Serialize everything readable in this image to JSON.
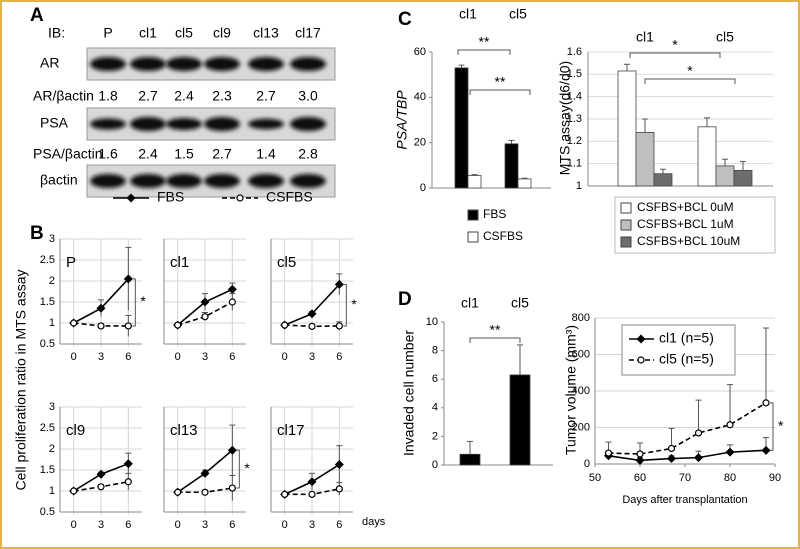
{
  "panel_labels": [
    "A",
    "B",
    "C",
    "D"
  ],
  "blot": {
    "ib_label": "IB:",
    "lanes": [
      "P",
      "cl1",
      "cl5",
      "cl9",
      "cl13",
      "cl17"
    ],
    "rows": [
      {
        "label": "AR"
      },
      {
        "label": "AR/βactin",
        "cells": [
          "1.8",
          "2.7",
          "2.4",
          "2.3",
          "2.7",
          "3.0"
        ]
      },
      {
        "label": "PSA"
      },
      {
        "label": "PSA/βactin",
        "cells": [
          "1.6",
          "2.4",
          "1.5",
          "2.7",
          "1.4",
          "2.8"
        ]
      },
      {
        "label": "βactin"
      }
    ]
  },
  "chart_data": [
    {
      "type": "line",
      "title": "P",
      "ylabel": "Cell proliferation ratio in MTS assay",
      "x": [
        0,
        3,
        6
      ],
      "xlim": [
        -1.5,
        7.5
      ],
      "xticks": [
        0,
        3,
        6
      ],
      "ylim": [
        0.5,
        3
      ],
      "yticks": [
        0.5,
        1,
        1.5,
        2,
        2.5,
        3
      ],
      "grid": true,
      "ytick_labels": true,
      "annotations": [
        "*"
      ],
      "series": [
        {
          "name": "FBS",
          "color": "#000000",
          "marker": "diamond",
          "dashed": false,
          "values": [
            1,
            1.35,
            2.05
          ],
          "errors": [
            0,
            0.2,
            0.75
          ]
        },
        {
          "name": "CSFBS",
          "color": "#000000",
          "marker": "open-circle",
          "dashed": true,
          "values": [
            1,
            0.93,
            0.93
          ],
          "errors": [
            0,
            0.05,
            0.25
          ]
        }
      ]
    },
    {
      "type": "line",
      "title": "cl1",
      "x": [
        0,
        3,
        6
      ],
      "xlim": [
        -1.5,
        7.5
      ],
      "xticks": [
        0,
        3,
        6
      ],
      "ylim": [
        0.5,
        3
      ],
      "yticks": [
        0.5,
        1,
        1.5,
        2,
        2.5,
        3
      ],
      "grid": true,
      "ytick_labels": false,
      "series": [
        {
          "color": "#000000",
          "marker": "diamond",
          "dashed": false,
          "values": [
            0.95,
            1.5,
            1.8
          ],
          "errors": [
            0,
            0.2,
            0.15
          ]
        },
        {
          "color": "#000000",
          "marker": "open-circle",
          "dashed": true,
          "values": [
            0.95,
            1.15,
            1.5
          ],
          "errors": [
            0,
            0.1,
            0.2
          ]
        }
      ]
    },
    {
      "type": "line",
      "title": "cl5",
      "x": [
        0,
        3,
        6
      ],
      "xlim": [
        -1.5,
        7.5
      ],
      "xticks": [
        0,
        3,
        6
      ],
      "ylim": [
        0.5,
        3
      ],
      "yticks": [
        0.5,
        1,
        1.5,
        2,
        2.5,
        3
      ],
      "grid": true,
      "ytick_labels": false,
      "annotations": [
        "*"
      ],
      "series": [
        {
          "color": "#000000",
          "marker": "diamond",
          "dashed": false,
          "values": [
            0.95,
            1.22,
            1.92
          ],
          "errors": [
            0,
            0.05,
            0.25
          ]
        },
        {
          "color": "#000000",
          "marker": "open-circle",
          "dashed": true,
          "values": [
            0.95,
            0.92,
            0.93
          ],
          "errors": [
            0,
            0.05,
            0.1
          ]
        }
      ]
    },
    {
      "type": "line",
      "title": "cl9",
      "x": [
        0,
        3,
        6
      ],
      "xlim": [
        -1.5,
        7.5
      ],
      "xticks": [
        0,
        3,
        6
      ],
      "ylim": [
        0.5,
        3
      ],
      "yticks": [
        0.5,
        1,
        1.5,
        2,
        2.5,
        3
      ],
      "grid": true,
      "ytick_labels": true,
      "series": [
        {
          "color": "#000000",
          "marker": "diamond",
          "dashed": false,
          "values": [
            1,
            1.4,
            1.65
          ],
          "errors": [
            0,
            0.05,
            0.25
          ]
        },
        {
          "color": "#000000",
          "marker": "open-circle",
          "dashed": true,
          "values": [
            1,
            1.1,
            1.22
          ],
          "errors": [
            0,
            0.05,
            0.2
          ]
        }
      ]
    },
    {
      "type": "line",
      "title": "cl13",
      "x": [
        0,
        3,
        6
      ],
      "xlim": [
        -1.5,
        7.5
      ],
      "xticks": [
        0,
        3,
        6
      ],
      "ylim": [
        0.5,
        3
      ],
      "yticks": [
        0.5,
        1,
        1.5,
        2,
        2.5,
        3
      ],
      "grid": true,
      "ytick_labels": false,
      "annotations": [
        "*"
      ],
      "series": [
        {
          "color": "#000000",
          "marker": "diamond",
          "dashed": false,
          "values": [
            0.97,
            1.42,
            1.97
          ],
          "errors": [
            0,
            0.08,
            0.6
          ]
        },
        {
          "color": "#000000",
          "marker": "open-circle",
          "dashed": true,
          "values": [
            0.97,
            0.97,
            1.07
          ],
          "errors": [
            0,
            0.05,
            0.3
          ]
        }
      ]
    },
    {
      "type": "line",
      "title": "cl17",
      "xlabel": "days",
      "x": [
        0,
        3,
        6
      ],
      "xlim": [
        -1.5,
        7.5
      ],
      "xticks": [
        0,
        3,
        6
      ],
      "ylim": [
        0.5,
        3
      ],
      "yticks": [
        0.5,
        1,
        1.5,
        2,
        2.5,
        3
      ],
      "grid": true,
      "ytick_labels": false,
      "series": [
        {
          "color": "#000000",
          "marker": "diamond",
          "dashed": false,
          "values": [
            0.92,
            1.22,
            1.63
          ],
          "errors": [
            0,
            0.2,
            0.45
          ]
        },
        {
          "color": "#000000",
          "marker": "open-circle",
          "dashed": true,
          "values": [
            0.92,
            0.92,
            1.05
          ],
          "errors": [
            0,
            0.03,
            0.15
          ]
        }
      ]
    },
    {
      "type": "bar",
      "ylabel": "PSA/TBP",
      "categories": [
        "cl1",
        "cl5"
      ],
      "ylim": [
        0,
        60
      ],
      "yticks": [
        0,
        20,
        40,
        60
      ],
      "grid": false,
      "annotations": [
        "**",
        "**"
      ],
      "series": [
        {
          "name": "FBS",
          "color": "#000000",
          "values": [
            53,
            19.5
          ],
          "errors": [
            1.2,
            1.5
          ]
        },
        {
          "name": "CSFBS",
          "color": "#ffffff",
          "values": [
            5.5,
            4
          ],
          "errors": [
            0.4,
            0.3
          ]
        }
      ]
    },
    {
      "type": "bar",
      "ylabel": "MTS assay(d6/d0)",
      "categories": [
        "cl1",
        "cl5"
      ],
      "ylim": [
        1,
        1.6
      ],
      "yticks": [
        1,
        1.1,
        1.2,
        1.3,
        1.4,
        1.5,
        1.6
      ],
      "grid": true,
      "annotations": [
        "*",
        "*"
      ],
      "series": [
        {
          "name": "CSFBS+BCL 0uM",
          "color": "#ffffff",
          "values": [
            1.515,
            1.265
          ],
          "errors": [
            0.03,
            0.04
          ]
        },
        {
          "name": "CSFBS+BCL 1uM",
          "color": "#bfbfbf",
          "values": [
            1.24,
            1.09
          ],
          "errors": [
            0.06,
            0.03
          ]
        },
        {
          "name": "CSFBS+BCL 10uM",
          "color": "#6d6d6d",
          "values": [
            1.055,
            1.07
          ],
          "errors": [
            0.02,
            0.04
          ]
        }
      ]
    },
    {
      "type": "bar",
      "ylabel": "Invaded cell number",
      "categories": [
        "cl1",
        "cl5"
      ],
      "ylim": [
        0,
        10
      ],
      "yticks": [
        0,
        2,
        4,
        6,
        8,
        10
      ],
      "grid": false,
      "annotations": [
        "**"
      ],
      "series": [
        {
          "color": "#000000",
          "values": [
            0.75,
            6.3
          ],
          "errors": [
            0.9,
            2.1
          ]
        }
      ]
    },
    {
      "type": "line",
      "xlabel": "Days after transplantation",
      "ylabel": "Tumor volume (mm³)",
      "x": [
        53,
        60,
        67,
        73,
        80,
        88
      ],
      "xlim": [
        50,
        90
      ],
      "xticks": [
        50,
        60,
        70,
        80,
        90
      ],
      "ylim": [
        0,
        800
      ],
      "yticks": [
        0,
        200,
        400,
        600,
        800
      ],
      "grid": true,
      "ytick_labels": true,
      "legend": "upper left",
      "error_style": "upper",
      "annotations": [
        "*"
      ],
      "series": [
        {
          "name": "cl1 (n=5)",
          "color": "#000000",
          "marker": "diamond",
          "dashed": false,
          "values": [
            45,
            20,
            30,
            35,
            65,
            75
          ],
          "errors": [
            20,
            15,
            15,
            35,
            40,
            70
          ]
        },
        {
          "name": "cl5 (n=5)",
          "color": "#000000",
          "marker": "open-circle",
          "dashed": true,
          "values": [
            60,
            55,
            85,
            170,
            215,
            335
          ],
          "errors": [
            60,
            60,
            110,
            180,
            220,
            410
          ]
        }
      ]
    }
  ]
}
